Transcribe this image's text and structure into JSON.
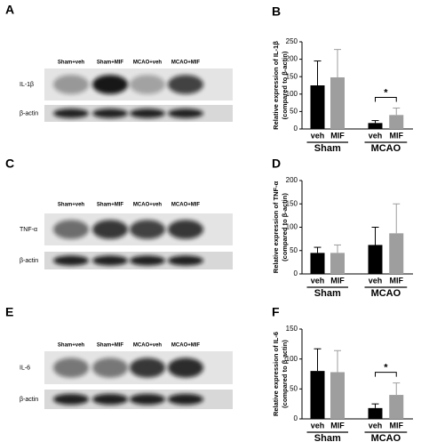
{
  "blots": [
    {
      "letter": "A",
      "lanes": [
        "Sham+veh",
        "Sham+MIF",
        "MCAO+veh",
        "MCAO+MIF"
      ],
      "rows": [
        "IL-1β",
        "β-actin"
      ]
    },
    {
      "letter": "C",
      "lanes": [
        "Sham+veh",
        "Sham+MIF",
        "MCAO+veh",
        "MCAO+MIF"
      ],
      "rows": [
        "TNF-α",
        "β-actin"
      ]
    },
    {
      "letter": "E",
      "lanes": [
        "Sham+veh",
        "Sham+MIF",
        "MCAO+veh",
        "MCAO+MIF"
      ],
      "rows": [
        "IL-6",
        "β-actin"
      ]
    }
  ],
  "chart_data": [
    {
      "type": "bar",
      "letter": "B",
      "ylabel": "Relative expression of IL-1β",
      "ylabel_note": "(compared to β-actin)",
      "categories": [
        "veh",
        "MIF",
        "veh",
        "MIF"
      ],
      "groups": [
        "Sham",
        "MCAO"
      ],
      "values": [
        125,
        148,
        17,
        40
      ],
      "errors": [
        70,
        80,
        7,
        20
      ],
      "colors": [
        "#000000",
        "#9e9e9e",
        "#000000",
        "#9e9e9e"
      ],
      "annotation": "*",
      "ylim": [
        0,
        250
      ],
      "yticks": [
        0,
        50,
        100,
        150,
        200,
        250
      ]
    },
    {
      "type": "bar",
      "letter": "D",
      "ylabel": "Relative expression of TNF-α",
      "ylabel_note": "(compared to β-actin)",
      "categories": [
        "veh",
        "MIF",
        "veh",
        "MIF"
      ],
      "groups": [
        "Sham",
        "MCAO"
      ],
      "values": [
        45,
        45,
        62,
        87
      ],
      "errors": [
        12,
        17,
        38,
        63
      ],
      "colors": [
        "#000000",
        "#9e9e9e",
        "#000000",
        "#9e9e9e"
      ],
      "ylim": [
        0,
        200
      ],
      "yticks": [
        0,
        50,
        100,
        150,
        200
      ]
    },
    {
      "type": "bar",
      "letter": "F",
      "ylabel": "Relative expression of IL-6",
      "ylabel_note": "(compared to β-actin)",
      "categories": [
        "veh",
        "MIF",
        "veh",
        "MIF"
      ],
      "groups": [
        "Sham",
        "MCAO"
      ],
      "values": [
        80,
        78,
        18,
        40
      ],
      "errors": [
        37,
        36,
        7,
        20
      ],
      "colors": [
        "#000000",
        "#9e9e9e",
        "#000000",
        "#9e9e9e"
      ],
      "annotation": "*",
      "ylim": [
        0,
        150
      ],
      "yticks": [
        0,
        50,
        100,
        150
      ]
    }
  ]
}
